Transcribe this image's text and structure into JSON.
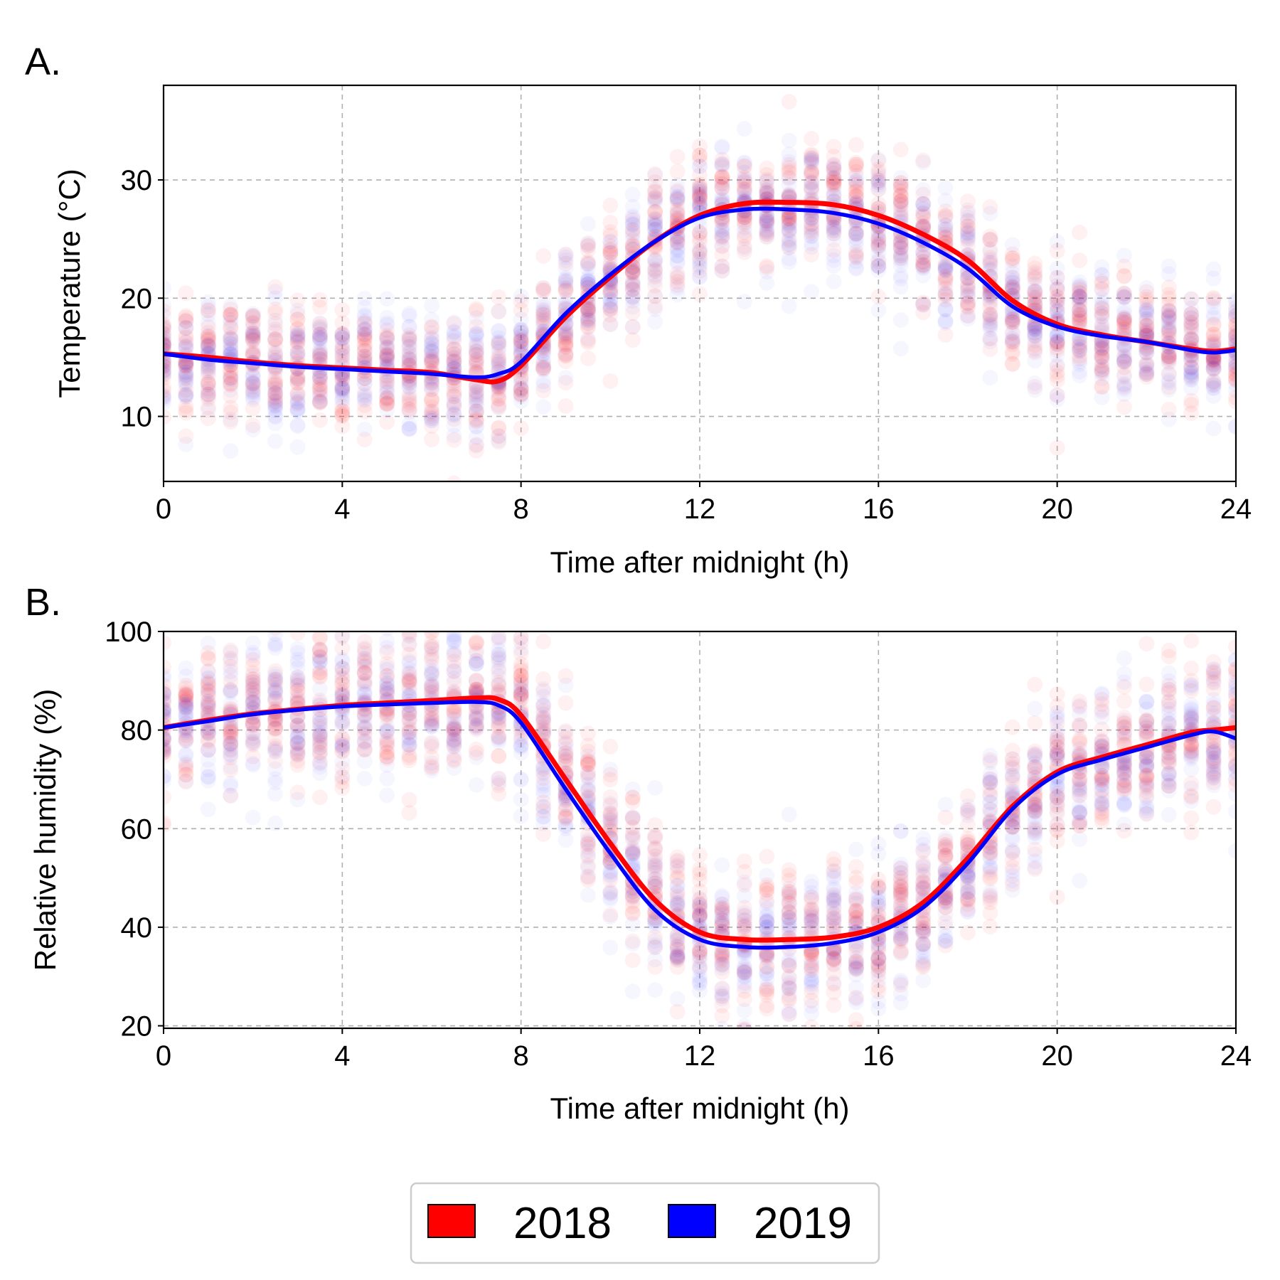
{
  "legend": {
    "items": [
      {
        "label": "2018",
        "color": "#ff0000"
      },
      {
        "label": "2019",
        "color": "#0000ff"
      }
    ]
  },
  "chart_data": [
    {
      "panel_label": "A.",
      "type": "line",
      "xlabel": "Time after midnight (h)",
      "ylabel": "Temperature (°C)",
      "xlim": [
        0,
        24
      ],
      "ylim": [
        4.5,
        38
      ],
      "xticks": [
        0,
        4,
        8,
        12,
        16,
        20,
        24
      ],
      "yticks": [
        10,
        20,
        30
      ],
      "grid": true,
      "scatter_overlay": true,
      "x": [
        0,
        1,
        2,
        3,
        4,
        5,
        6,
        7,
        7.5,
        8,
        9,
        10,
        11,
        12,
        13,
        14,
        15,
        16,
        17,
        18,
        19,
        20,
        21,
        22,
        23,
        23.5,
        24
      ],
      "series": [
        {
          "name": "2018",
          "color": "#ff0000",
          "values": [
            15.3,
            15.0,
            14.6,
            14.3,
            14.1,
            13.9,
            13.7,
            13.1,
            13.0,
            14.3,
            18.4,
            21.8,
            24.8,
            27.0,
            28.0,
            28.1,
            27.9,
            27.0,
            25.4,
            23.2,
            19.8,
            17.8,
            16.9,
            16.3,
            15.7,
            15.5,
            15.7
          ]
        },
        {
          "name": "2019",
          "color": "#0000ff",
          "values": [
            15.3,
            14.8,
            14.5,
            14.2,
            14.0,
            13.8,
            13.6,
            13.3,
            13.6,
            14.6,
            18.7,
            22.0,
            24.8,
            26.8,
            27.5,
            27.5,
            27.2,
            26.3,
            24.7,
            22.5,
            19.3,
            17.6,
            16.8,
            16.3,
            15.6,
            15.4,
            15.6
          ]
        }
      ]
    },
    {
      "panel_label": "B.",
      "type": "line",
      "xlabel": "Time after midnight (h)",
      "ylabel": "Relative humidity (%)",
      "xlim": [
        0,
        24
      ],
      "ylim": [
        19.5,
        100
      ],
      "xticks": [
        0,
        4,
        8,
        12,
        16,
        20,
        24
      ],
      "yticks": [
        20,
        40,
        60,
        80,
        100
      ],
      "grid": true,
      "scatter_overlay": true,
      "x": [
        0,
        1,
        2,
        3,
        4,
        5,
        6,
        7,
        7.5,
        8,
        9,
        10,
        11,
        12,
        13,
        14,
        15,
        16,
        17,
        18,
        19,
        20,
        21,
        22,
        23,
        23.5,
        24
      ],
      "series": [
        {
          "name": "2018",
          "color": "#ff0000",
          "values": [
            80.5,
            82.0,
            83.3,
            84.2,
            85.0,
            85.5,
            86.0,
            86.5,
            86.2,
            83.0,
            70.0,
            57.0,
            45.5,
            39.0,
            37.5,
            37.5,
            38.0,
            40.0,
            45.0,
            54.0,
            64.5,
            71.5,
            74.5,
            77.0,
            79.5,
            80.0,
            80.5
          ]
        },
        {
          "name": "2019",
          "color": "#0000ff",
          "values": [
            80.5,
            81.8,
            83.2,
            84.1,
            84.8,
            85.2,
            85.5,
            85.7,
            85.0,
            81.5,
            68.0,
            55.0,
            43.5,
            37.5,
            36.0,
            36.0,
            36.8,
            39.0,
            44.0,
            53.0,
            64.0,
            71.0,
            74.0,
            76.5,
            79.0,
            79.7,
            78.3
          ]
        }
      ]
    }
  ]
}
